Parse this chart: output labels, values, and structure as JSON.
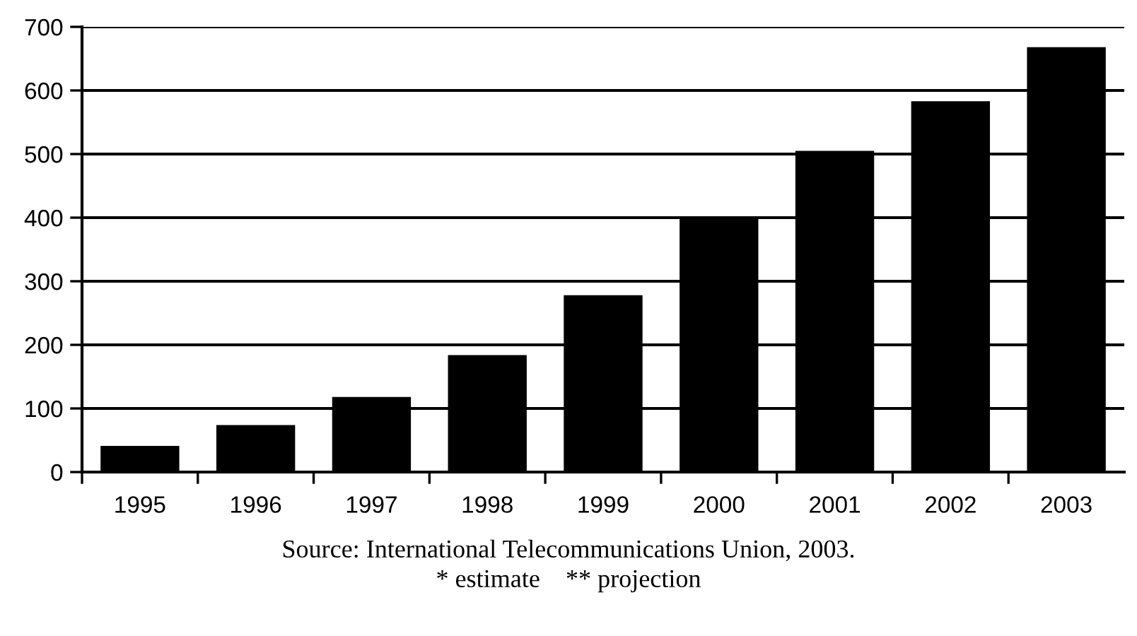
{
  "chart_data": {
    "type": "bar",
    "categories": [
      "1995",
      "1996",
      "1997",
      "1998",
      "1999",
      "2000",
      "2001",
      "2002",
      "2003"
    ],
    "values": [
      41,
      74,
      118,
      184,
      278,
      400,
      505,
      583,
      668
    ],
    "color": "#000000",
    "ylim": [
      0,
      700
    ],
    "yticks": [
      0,
      100,
      200,
      300,
      400,
      500,
      600,
      700
    ],
    "grid": "y",
    "annotations": [
      "Source: International Telecommunications Union, 2003.",
      "* estimate    ** projection"
    ]
  }
}
